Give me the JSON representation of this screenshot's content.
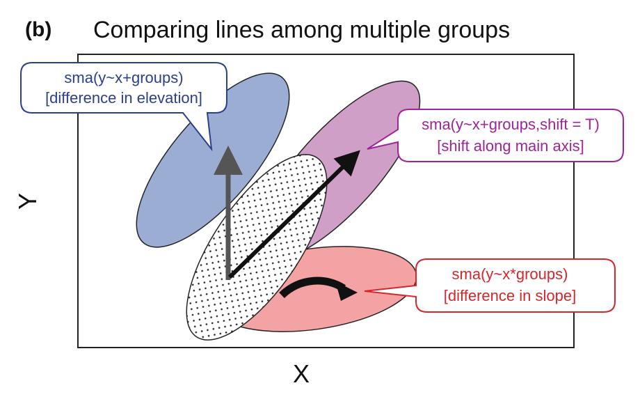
{
  "panel_label": "(b)",
  "title": "Comparing lines among multiple groups",
  "axes": {
    "x_label": "X",
    "y_label": "Y"
  },
  "colors": {
    "elevation_fill": "#9badd3",
    "shift_fill": "#cf9fc7",
    "slope_fill": "#f3a3a3",
    "elevation_text": "#2b3f8f",
    "shift_text": "#a0239a",
    "slope_text": "#d7262b",
    "arrow_grey": "#555555",
    "arrow_black": "#111111"
  },
  "callouts": {
    "elevation": {
      "line1": "sma(y~x+groups)",
      "line2": "[difference in elevation]"
    },
    "shift": {
      "line1": "sma(y~x+groups,shift = T)",
      "line2": "[shift along main axis]"
    },
    "slope": {
      "line1": "sma(y~x*groups)",
      "line2": "[difference in slope]"
    }
  }
}
